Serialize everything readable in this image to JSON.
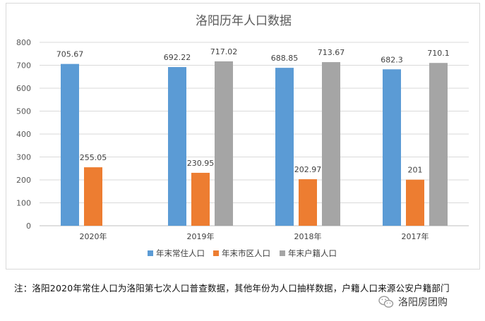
{
  "chart_data": {
    "type": "bar",
    "title": "洛阳历年人口数据",
    "categories": [
      "2020年",
      "2019年",
      "2018年",
      "2017年"
    ],
    "series": [
      {
        "name": "年末常住人口",
        "color": "#5b9bd5",
        "values": [
          705.67,
          692.22,
          688.85,
          682.3
        ]
      },
      {
        "name": "年末市区人口",
        "color": "#ed7d31",
        "values": [
          255.05,
          230.95,
          202.97,
          201
        ]
      },
      {
        "name": "年末户籍人口",
        "color": "#a5a5a5",
        "values": [
          null,
          717.02,
          713.67,
          710.1
        ]
      }
    ],
    "ylim": [
      0,
      800
    ],
    "yticks": [
      0,
      100,
      200,
      300,
      400,
      500,
      600,
      700,
      800
    ],
    "value_labels": [
      [
        "705.67",
        "692.22",
        "688.85",
        "682.3"
      ],
      [
        "255.05",
        "230.95",
        "202.97",
        "201"
      ],
      [
        "",
        "717.02",
        "713.67",
        "710.1"
      ]
    ],
    "grid": true,
    "legend_position": "bottom"
  },
  "note": "注：洛阳2020年常住人口为洛阳第七次人口普查数据，其他年份为人口抽样数据，户籍人口来源公安户籍部门",
  "watermark": {
    "text": "洛阳房团购",
    "icon": "wechat-icon"
  }
}
